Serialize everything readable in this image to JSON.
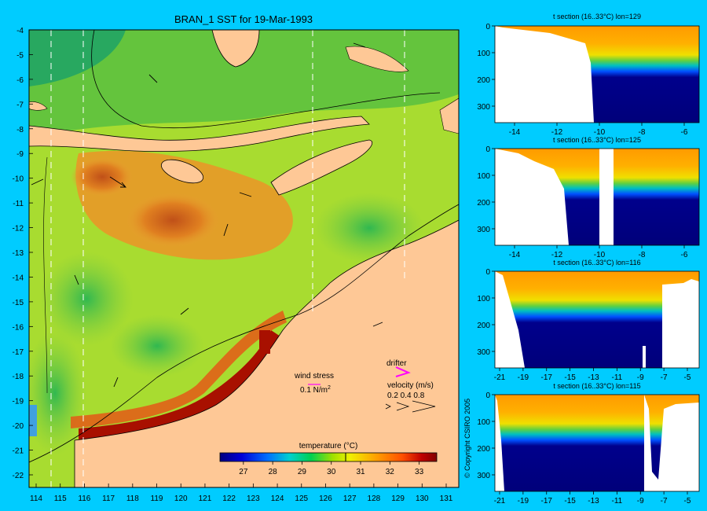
{
  "title": "BRAN_1 SST for 19-Mar-1993",
  "map": {
    "lat_ticks": [
      "-4",
      "-5",
      "-6",
      "-7",
      "-8",
      "-9",
      "-10",
      "-11",
      "-12",
      "-13",
      "-14",
      "-15",
      "-16",
      "-17",
      "-18",
      "-19",
      "-20",
      "-21",
      "-22"
    ],
    "lon_ticks": [
      "114",
      "115",
      "116",
      "117",
      "118",
      "119",
      "120",
      "121",
      "122",
      "123",
      "124",
      "125",
      "126",
      "127",
      "128",
      "129",
      "130",
      "131"
    ],
    "section_lons": [
      114.5,
      115.8,
      125.4,
      129.4
    ]
  },
  "legend": {
    "wind_stress_label": "wind stress",
    "wind_scale_label": "0.1 N/m",
    "wind_scale_sup": "2",
    "drifter_label": "drifter",
    "velocity_label": "velocity (m/s)",
    "velocity_values": "0.2 0.4 0.8"
  },
  "colorbar": {
    "title": "temperature (°C)",
    "ticks": [
      "27",
      "28",
      "29",
      "30",
      "31",
      "32",
      "33"
    ],
    "range": [
      26.2,
      33.6
    ],
    "colors": [
      "#00007f",
      "#0000d0",
      "#0050ff",
      "#00b4ff",
      "#00e0c0",
      "#00d060",
      "#40d000",
      "#b0e000",
      "#f0f000",
      "#ffc000",
      "#ff8000",
      "#ff4000",
      "#c00000",
      "#800000"
    ]
  },
  "sections": [
    {
      "title": "t section (16..33°C) lon=129",
      "x_ticks": [
        "-14",
        "-12",
        "-10",
        "-8",
        "-6"
      ],
      "y_ticks": [
        "0",
        "100",
        "200",
        "300"
      ]
    },
    {
      "title": "t section (16..33°C) lon=125",
      "x_ticks": [
        "-14",
        "-12",
        "-10",
        "-8",
        "-6"
      ],
      "y_ticks": [
        "0",
        "100",
        "200",
        "300"
      ]
    },
    {
      "title": "t section (16..33°C) lon=116",
      "x_ticks": [
        "-21",
        "-19",
        "-17",
        "-15",
        "-13",
        "-11",
        "-9",
        "-7",
        "-5"
      ],
      "y_ticks": [
        "0",
        "100",
        "200",
        "300"
      ]
    },
    {
      "title": "t section (16..33°C) lon=115",
      "x_ticks": [
        "-21",
        "-19",
        "-17",
        "-15",
        "-13",
        "-11",
        "-9",
        "-7",
        "-5"
      ],
      "y_ticks": [
        "0",
        "100",
        "200",
        "300"
      ]
    }
  ],
  "copyright": "© Copyright CSIRO 2005"
}
